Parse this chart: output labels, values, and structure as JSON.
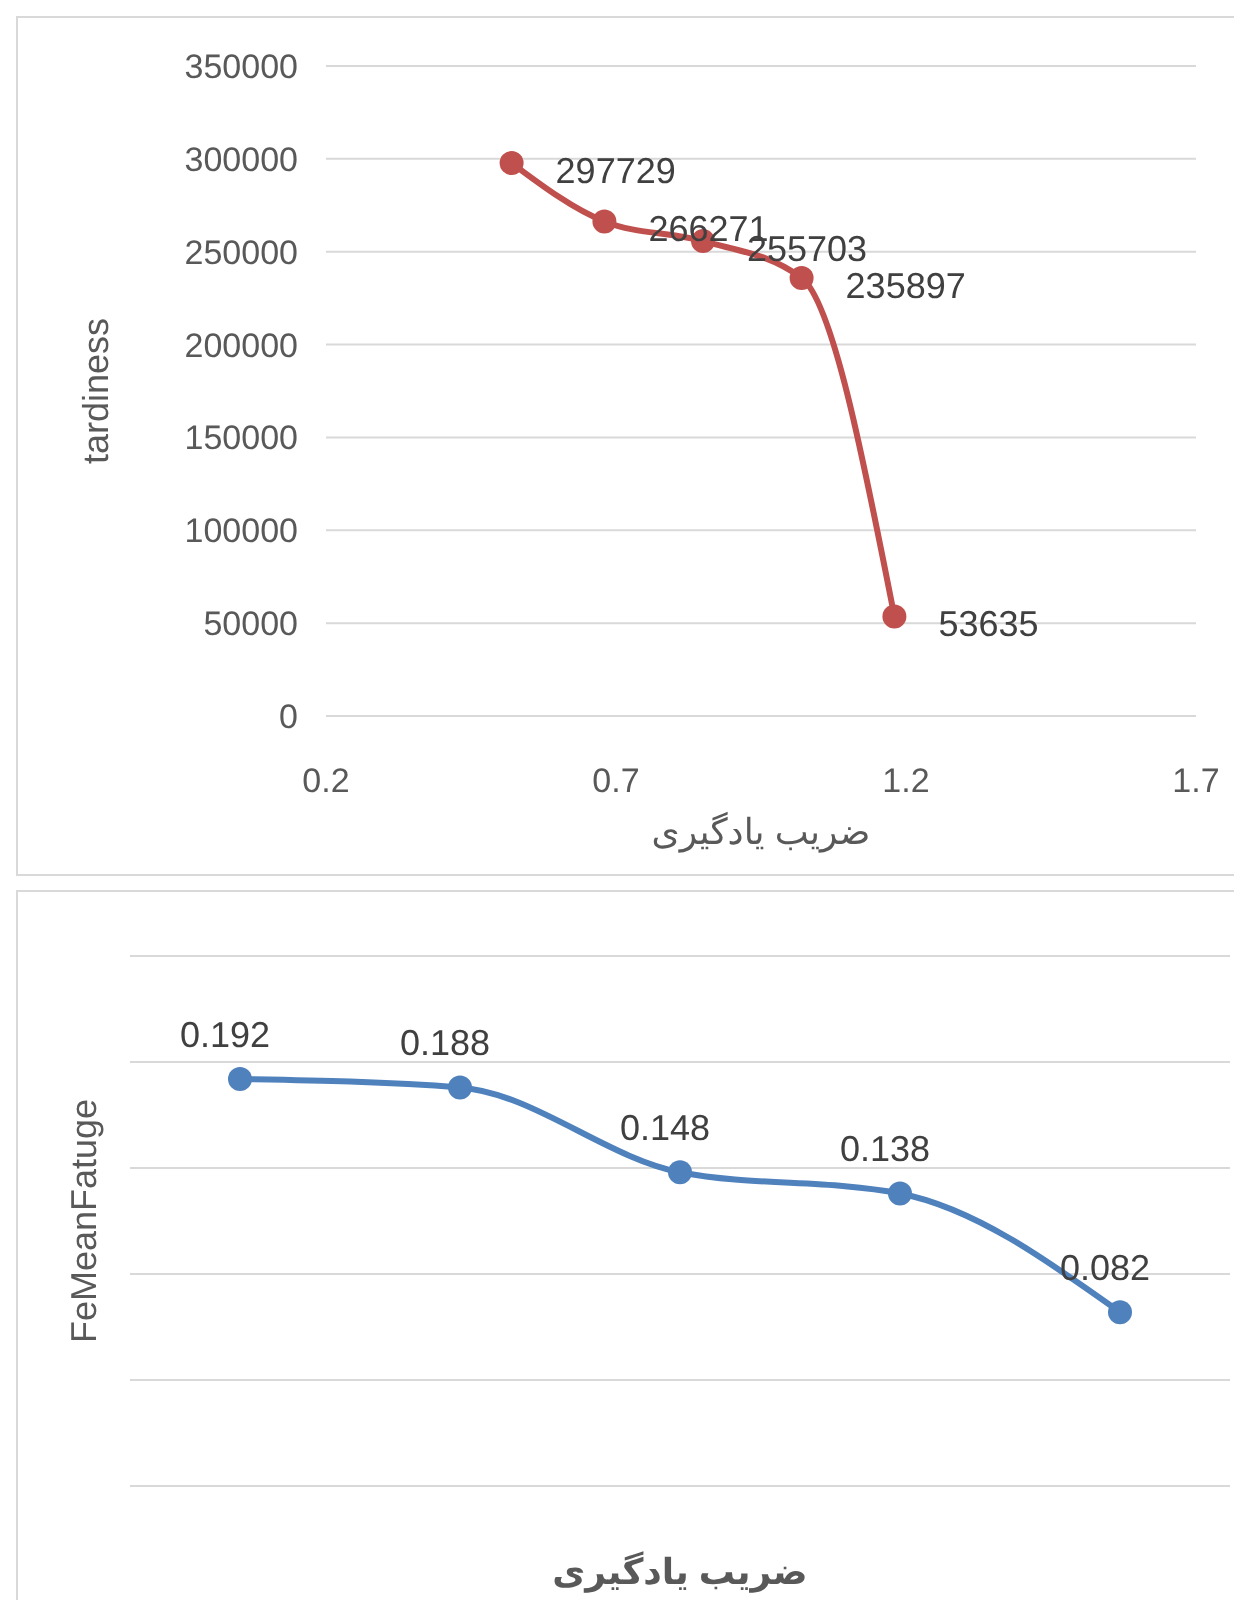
{
  "chart_data": [
    {
      "type": "line",
      "xlabel": "ضریب یادگیری",
      "ylabel": "tardiness",
      "x": [
        0.52,
        0.68,
        0.85,
        1.02,
        1.18
      ],
      "series": [
        {
          "color": "#c0504d",
          "values": [
            297729,
            266271,
            255703,
            235897,
            53635
          ]
        }
      ],
      "xlim": [
        0.2,
        1.7
      ],
      "xticks": [
        0.2,
        0.7,
        1.2,
        1.7
      ],
      "ylim": [
        0,
        350000
      ],
      "yticks": [
        0,
        50000,
        100000,
        150000,
        200000,
        250000,
        300000,
        350000
      ],
      "grid": "y",
      "marker": "circle",
      "data_labels": true
    },
    {
      "type": "line",
      "xlabel": "ضریب یادگیری",
      "ylabel": "FeMeanFatuge",
      "categories": [
        null,
        null,
        null,
        null,
        null
      ],
      "series": [
        {
          "color": "#4f81bd",
          "values": [
            0.192,
            0.188,
            0.148,
            0.138,
            0.082
          ]
        }
      ],
      "ylim": [
        0,
        0.25
      ],
      "yticks": [
        {
          "value": 0,
          "label": null
        },
        {
          "value": 0.05,
          "label": null
        },
        {
          "value": 0.1,
          "label": null
        },
        {
          "value": 0.15,
          "label": null
        },
        {
          "value": 0.2,
          "label": null
        },
        {
          "value": 0.25,
          "label": null
        }
      ],
      "grid": "y",
      "marker": "circle",
      "data_labels": true
    }
  ]
}
